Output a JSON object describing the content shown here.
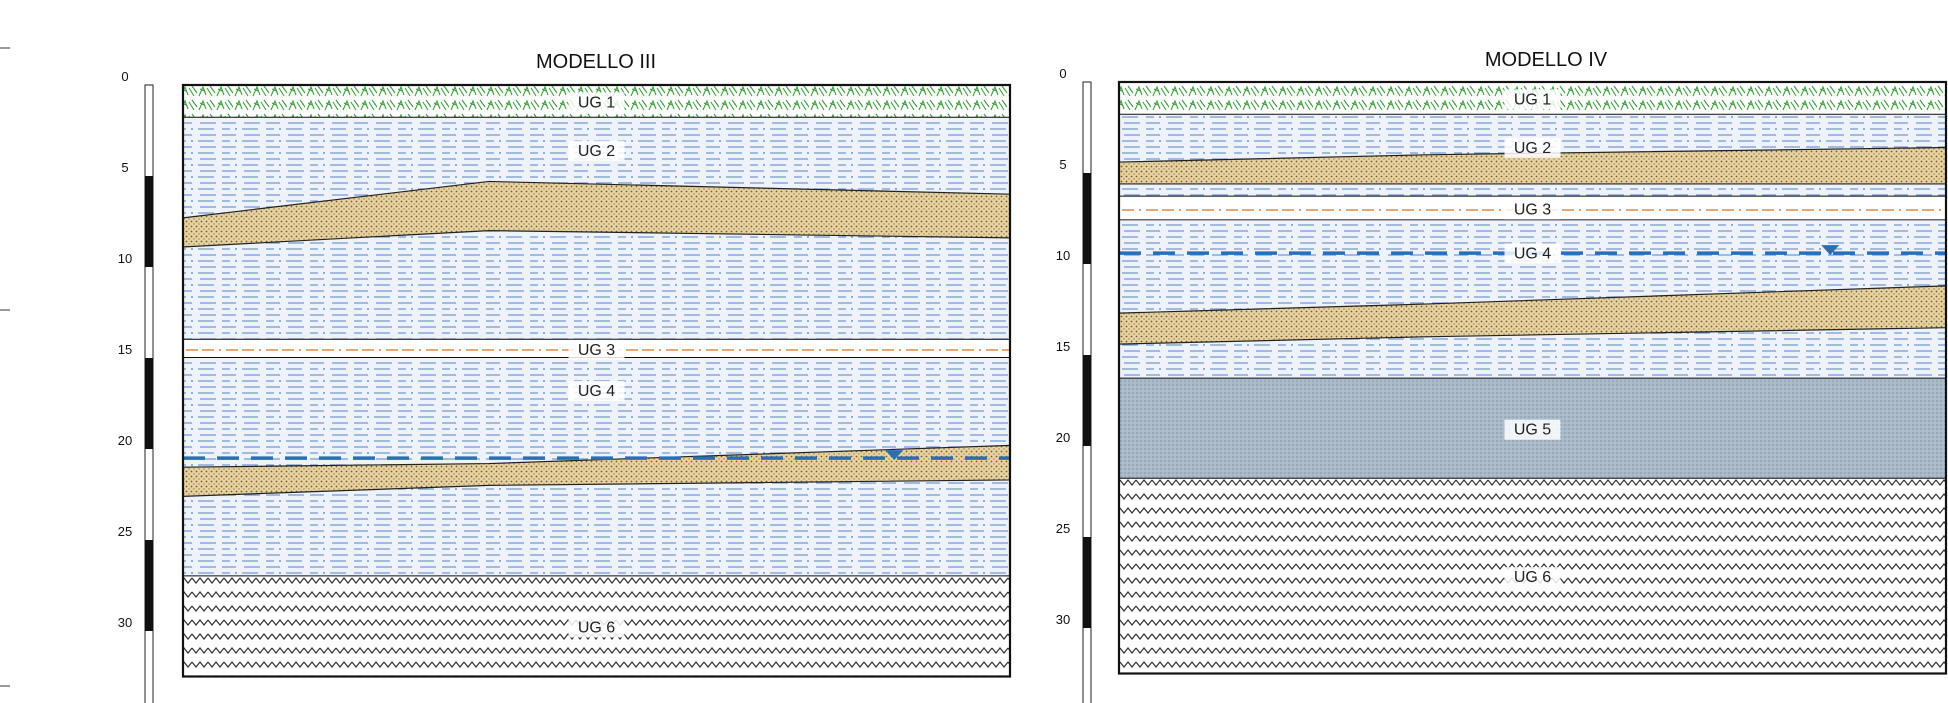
{
  "colors": {
    "fill_green": "#3d9e3d",
    "fill_blue_lines": "#6f93cf",
    "fill_sand": "#e6d3a3",
    "fill_sand_dot": "#7a5a28",
    "fill_grey": "#a9b9c8",
    "fill_zigzag": "#333333",
    "water_table": "#2a6fb6",
    "ug3_line": "#e07b2a"
  },
  "scale": {
    "unit": "m",
    "min_depth": 0,
    "max_depth": 34,
    "ticks": [
      0,
      5,
      10,
      15,
      20,
      25,
      30
    ],
    "tick_labels": [
      "0",
      "5",
      "10",
      "15",
      "20",
      "25",
      "30"
    ]
  },
  "models": [
    {
      "id": "m3",
      "title": "MODELLO III",
      "layers": [
        {
          "key": "ug1",
          "label": "UG 1",
          "pattern": "grass",
          "top": 0,
          "bottom": 1.8
        },
        {
          "key": "ug2",
          "label": "UG 2",
          "pattern": "lines",
          "top": 1.8,
          "bottom": 14.0
        },
        {
          "key": "ug3",
          "label": "UG 3",
          "pattern": "dashdot",
          "top": 14.0,
          "bottom": 15.0
        },
        {
          "key": "ug4",
          "label": "UG 4",
          "pattern": "lines",
          "top": 15.0,
          "bottom": 27.0
        },
        {
          "key": "ug6",
          "label": "UG 6",
          "pattern": "zigzag",
          "top": 27.0,
          "bottom": 32.5
        }
      ],
      "lenses": [
        {
          "key": "lens-ug2",
          "top": [
            7.3,
            5.3,
            6.0
          ],
          "bottom": [
            8.9,
            8.0,
            8.4
          ]
        },
        {
          "key": "lens-ug4",
          "top": [
            21.0,
            20.8,
            19.8
          ],
          "bottom": [
            22.6,
            22.0,
            21.7
          ]
        }
      ],
      "water_table": 20.5
    },
    {
      "id": "m4",
      "title": "MODELLO IV",
      "layers": [
        {
          "key": "ug1",
          "label": "UG 1",
          "pattern": "grass",
          "top": 0,
          "bottom": 1.8
        },
        {
          "key": "ug2",
          "label": "UG 2",
          "pattern": "lines",
          "top": 1.8,
          "bottom": 6.3
        },
        {
          "key": "ug3",
          "label": "UG 3",
          "pattern": "dashdot",
          "top": 6.3,
          "bottom": 7.6
        },
        {
          "key": "ug4",
          "label": "UG 4",
          "pattern": "lines",
          "top": 7.6,
          "bottom": 16.3
        },
        {
          "key": "ug5",
          "label": "UG 5",
          "pattern": "grey",
          "top": 16.3,
          "bottom": 21.8
        },
        {
          "key": "ug6",
          "label": "UG 6",
          "pattern": "zigzag",
          "top": 21.8,
          "bottom": 32.5
        }
      ],
      "lenses": [
        {
          "key": "lens-ug2",
          "top": [
            4.4,
            4.0,
            3.6
          ],
          "bottom": [
            5.6,
            5.6,
            5.6
          ]
        },
        {
          "key": "lens-ug4",
          "top": [
            12.7,
            12.2,
            11.2
          ],
          "bottom": [
            14.4,
            14.0,
            13.5
          ]
        }
      ],
      "water_table": 9.4
    }
  ]
}
